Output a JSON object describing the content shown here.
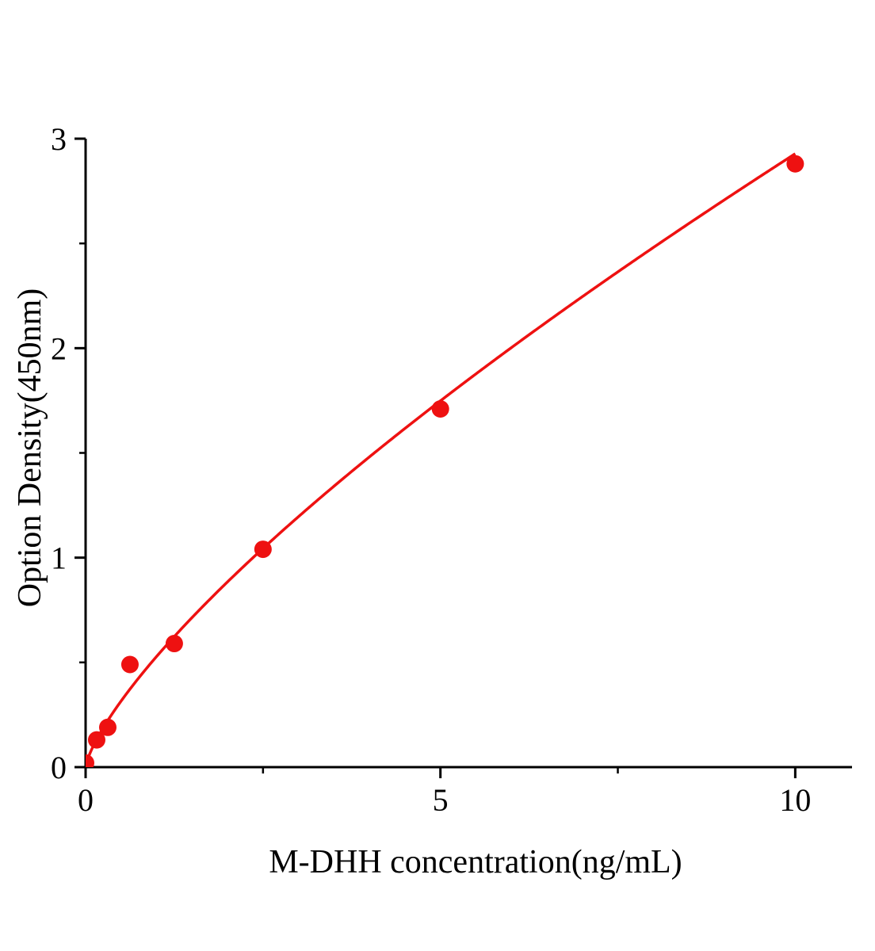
{
  "page": {
    "background": "#ffffff"
  },
  "chart_data": {
    "type": "scatter",
    "title": "",
    "xlabel": "M-DHH concentration(ng/mL)",
    "ylabel": "Option Density(450nm)",
    "x": [
      0,
      0.156,
      0.3125,
      0.625,
      1.25,
      2.5,
      5,
      10
    ],
    "y": [
      0.02,
      0.13,
      0.19,
      0.49,
      0.59,
      1.04,
      1.71,
      2.88
    ],
    "xlim": [
      0,
      10.8
    ],
    "ylim": [
      0,
      3
    ],
    "xticks": [
      0,
      5,
      10
    ],
    "yticks": [
      0,
      1,
      2,
      3
    ],
    "xticks_minor": [
      2.5,
      7.5
    ],
    "yticks_minor": [
      0.5,
      1.5,
      2.5
    ],
    "grid": false,
    "legend_position": "none",
    "marker_color": "#ee1111",
    "line_color": "#ee1111",
    "axis_color": "#000000",
    "curve_fit": "power"
  }
}
